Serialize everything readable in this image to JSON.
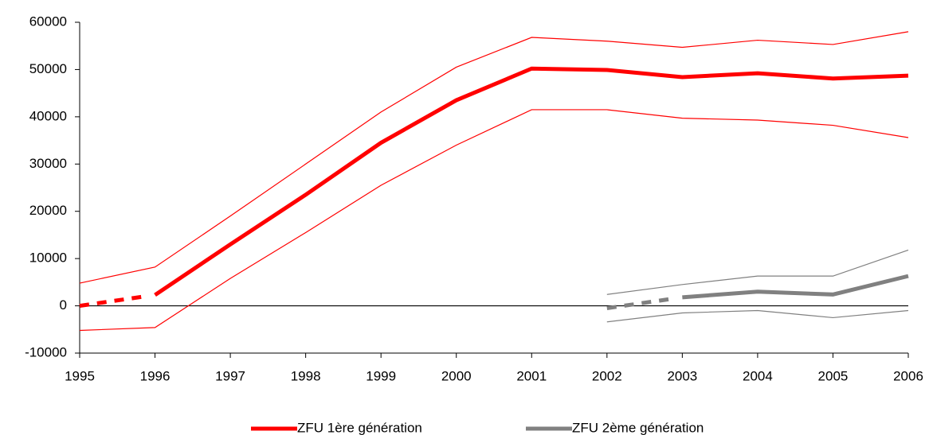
{
  "chart_data": {
    "type": "line",
    "x": [
      1995,
      1996,
      1997,
      1998,
      1999,
      2000,
      2001,
      2002,
      2003,
      2004,
      2005,
      2006
    ],
    "xlim": [
      1995,
      2006
    ],
    "xticks": [
      1995,
      1996,
      1997,
      1998,
      1999,
      2000,
      2001,
      2002,
      2003,
      2004,
      2005,
      2006
    ],
    "ylim": [
      -10000,
      60000
    ],
    "yticks": [
      -10000,
      0,
      10000,
      20000,
      30000,
      40000,
      50000,
      60000
    ],
    "legend": "bottom",
    "series": [
      {
        "name": "ZFU 1ère génération",
        "color": "#ff0000",
        "values": [
          0,
          2300,
          13000,
          23500,
          34500,
          43500,
          50200,
          49900,
          48400,
          49200,
          48100,
          48700
        ],
        "upper": [
          4800,
          8200,
          19000,
          30000,
          41000,
          50500,
          56800,
          56000,
          54700,
          56200,
          55300,
          58000
        ],
        "lower": [
          -5200,
          -4600,
          5800,
          15500,
          25500,
          34000,
          41500,
          41500,
          39700,
          39300,
          38200,
          35600
        ],
        "dashed_until": 1
      },
      {
        "name": "ZFU 2ème génération",
        "color": "#808080",
        "values": [
          null,
          null,
          null,
          null,
          null,
          null,
          null,
          -500,
          1800,
          3000,
          2400,
          6300
        ],
        "upper": [
          null,
          null,
          null,
          null,
          null,
          null,
          null,
          2400,
          4500,
          6300,
          6300,
          11800
        ],
        "lower": [
          null,
          null,
          null,
          null,
          null,
          null,
          null,
          -3400,
          -1500,
          -1000,
          -2500,
          -1000
        ],
        "dashed_until": 8
      }
    ]
  }
}
